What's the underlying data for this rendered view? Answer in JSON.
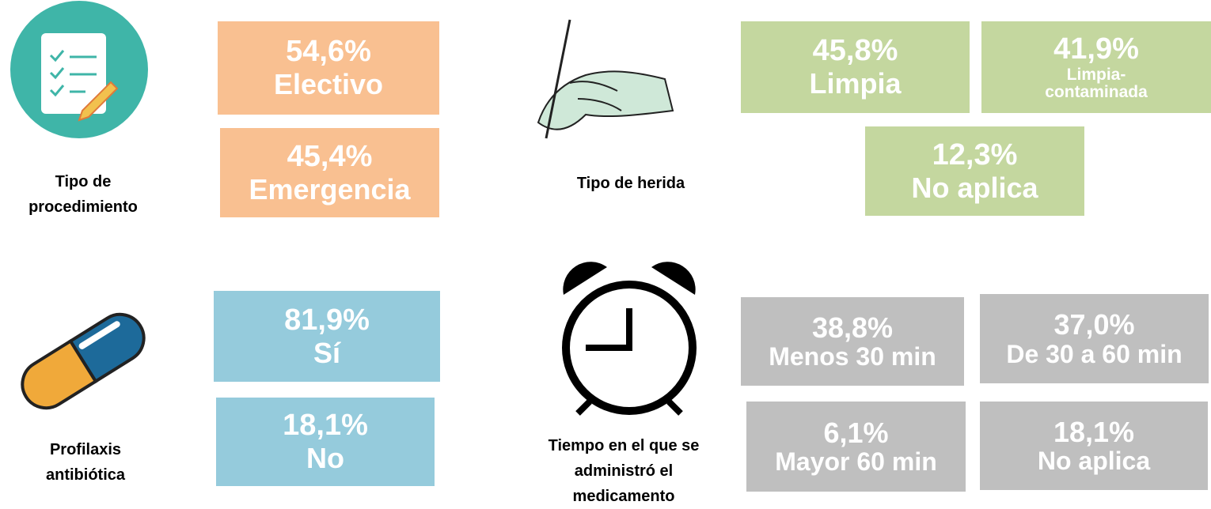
{
  "sections": [
    {
      "label": "Tipo de procedimiento",
      "boxes": [
        {
          "value": "54,6%",
          "label": "Electivo"
        },
        {
          "value": "45,4%",
          "label": "Emergencia"
        }
      ]
    },
    {
      "label": "Tipo de herida",
      "boxes": [
        {
          "value": "45,8%",
          "label": "Limpia"
        },
        {
          "value": "41,9%",
          "label": "Limpia-contaminada"
        },
        {
          "value": "12,3%",
          "label": "No aplica"
        }
      ]
    },
    {
      "label": "Profilaxis antibiótica",
      "boxes": [
        {
          "value": "81,9%",
          "label": "Sí"
        },
        {
          "value": "18,1%",
          "label": "No"
        }
      ]
    },
    {
      "label": "Tiempo en el que se administró el medicamento",
      "boxes": [
        {
          "value": "38,8%",
          "label": "Menos 30 min"
        },
        {
          "value": "37,0%",
          "label": "De 30 a 60 min"
        },
        {
          "value": "6,1%",
          "label": "Mayor 60 min"
        },
        {
          "value": "18,1%",
          "label": "No aplica"
        }
      ]
    }
  ]
}
